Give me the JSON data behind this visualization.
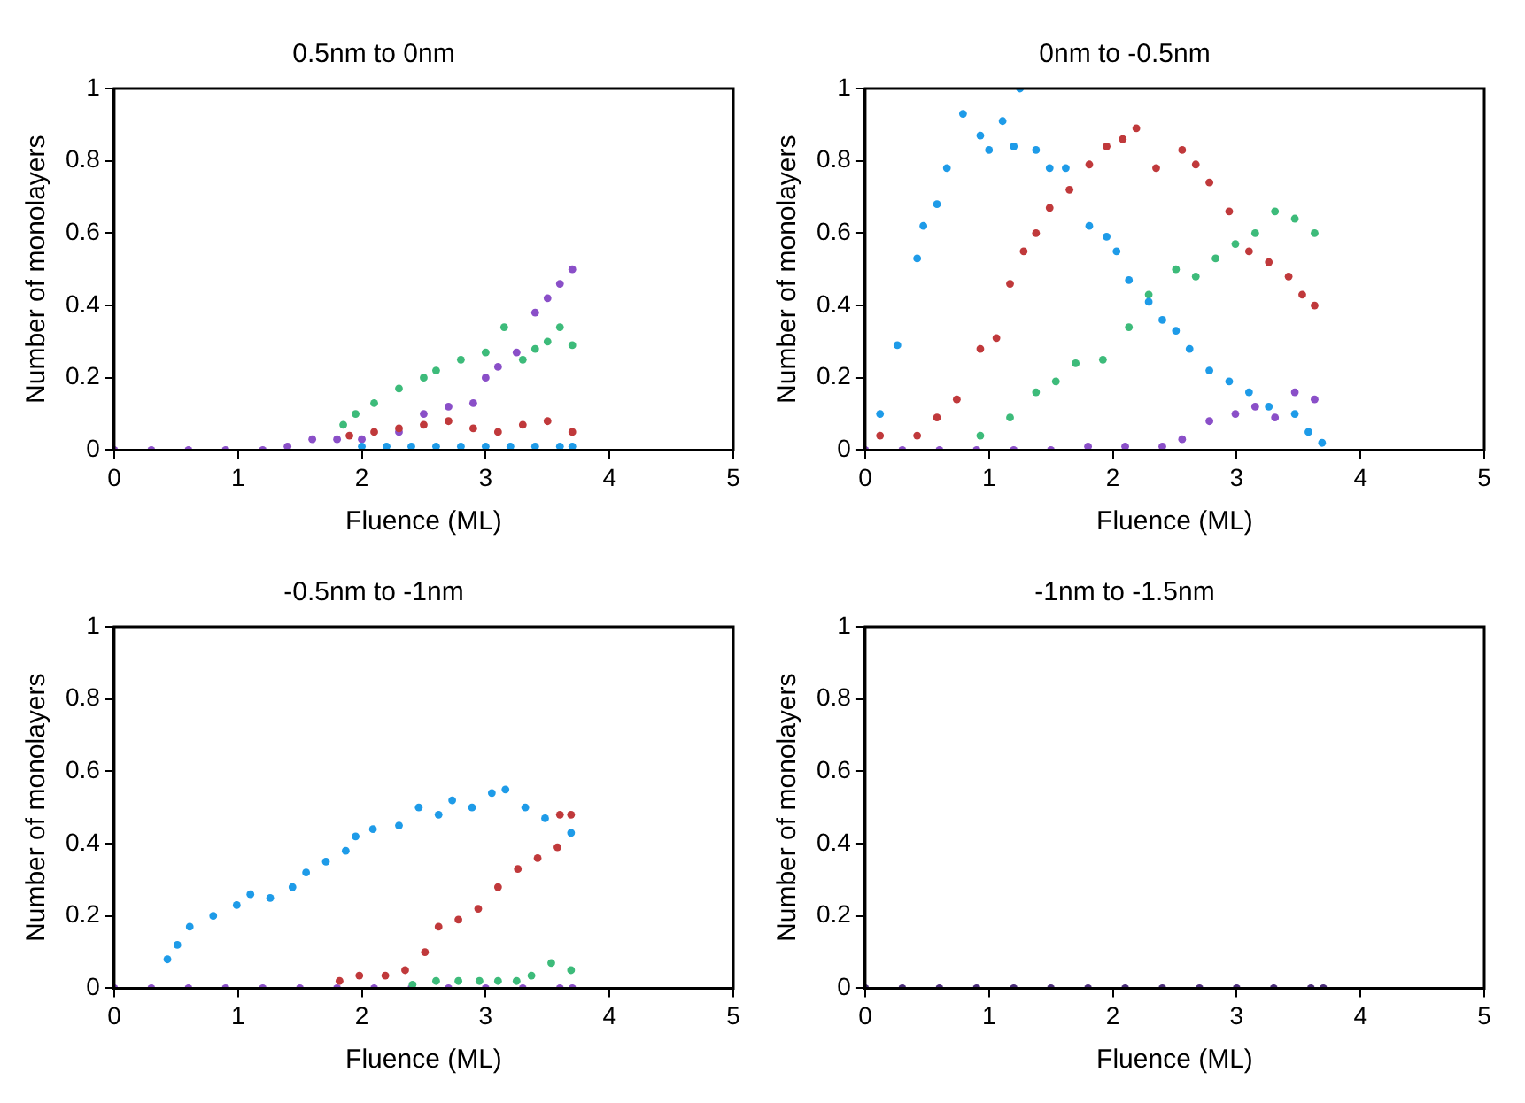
{
  "chart_data": [
    {
      "type": "scatter",
      "title": "0.5nm to 0nm",
      "xlabel": "Fluence (ML)",
      "ylabel": "Number of monolayers",
      "xlim": [
        0,
        5
      ],
      "ylim": [
        0,
        1
      ],
      "xticks": [
        0,
        1,
        2,
        3,
        4,
        5
      ],
      "yticks": [
        0,
        0.2,
        0.4,
        0.6,
        0.8,
        1
      ],
      "grid": false,
      "legend": false,
      "marker": "circle",
      "series": [
        {
          "color": "#1e9be8",
          "x": [
            2.0,
            2.2,
            2.4,
            2.6,
            2.8,
            3.0,
            3.2,
            3.4,
            3.6,
            3.7
          ],
          "values": [
            0.01,
            0.01,
            0.01,
            0.01,
            0.01,
            0.01,
            0.01,
            0.01,
            0.01,
            0.01
          ]
        },
        {
          "color": "#c0393b",
          "x": [
            1.9,
            2.1,
            2.3,
            2.5,
            2.7,
            2.9,
            3.1,
            3.3,
            3.5,
            3.7
          ],
          "values": [
            0.04,
            0.05,
            0.06,
            0.07,
            0.08,
            0.06,
            0.05,
            0.07,
            0.08,
            0.05
          ]
        },
        {
          "color": "#3dbb7a",
          "x": [
            1.85,
            1.95,
            2.1,
            2.3,
            2.5,
            2.6,
            2.8,
            3.0,
            3.15,
            3.3,
            3.4,
            3.5,
            3.6,
            3.7
          ],
          "values": [
            0.07,
            0.1,
            0.13,
            0.17,
            0.2,
            0.22,
            0.25,
            0.27,
            0.34,
            0.25,
            0.28,
            0.3,
            0.34,
            0.29
          ]
        },
        {
          "color": "#8a4fc8",
          "x": [
            0,
            0.3,
            0.6,
            0.9,
            1.2,
            1.4,
            1.6,
            1.8,
            2.0,
            2.3,
            2.5,
            2.7,
            2.9,
            3.0,
            3.1,
            3.25,
            3.4,
            3.5,
            3.6,
            3.7
          ],
          "values": [
            0,
            0,
            0,
            0,
            0,
            0.01,
            0.03,
            0.03,
            0.03,
            0.05,
            0.1,
            0.12,
            0.13,
            0.2,
            0.23,
            0.27,
            0.38,
            0.42,
            0.46,
            0.5
          ]
        }
      ]
    },
    {
      "type": "scatter",
      "title": "0nm to -0.5nm",
      "xlabel": "Fluence (ML)",
      "ylabel": "Number of monolayers",
      "xlim": [
        0,
        5
      ],
      "ylim": [
        0,
        1
      ],
      "xticks": [
        0,
        1,
        2,
        3,
        4,
        5
      ],
      "yticks": [
        0,
        0.2,
        0.4,
        0.6,
        0.8,
        1
      ],
      "grid": false,
      "legend": false,
      "marker": "circle",
      "series": [
        {
          "color": "#1e9be8",
          "x": [
            0.12,
            0.26,
            0.42,
            0.47,
            0.58,
            0.66,
            0.79,
            0.93,
            1.0,
            1.11,
            1.2,
            1.25,
            1.38,
            1.49,
            1.62,
            1.81,
            1.95,
            2.03,
            2.13,
            2.29,
            2.4,
            2.51,
            2.62,
            2.78,
            2.94,
            3.1,
            3.26,
            3.47,
            3.58,
            3.69
          ],
          "values": [
            0.1,
            0.29,
            0.53,
            0.62,
            0.68,
            0.78,
            0.93,
            0.87,
            0.83,
            0.91,
            0.84,
            1.0,
            0.83,
            0.78,
            0.78,
            0.62,
            0.59,
            0.55,
            0.47,
            0.41,
            0.36,
            0.33,
            0.28,
            0.22,
            0.19,
            0.16,
            0.12,
            0.1,
            0.05,
            0.02
          ]
        },
        {
          "color": "#c0393b",
          "x": [
            0.12,
            0.42,
            0.58,
            0.74,
            0.93,
            1.06,
            1.17,
            1.28,
            1.38,
            1.49,
            1.65,
            1.81,
            1.95,
            2.08,
            2.19,
            2.35,
            2.56,
            2.67,
            2.78,
            2.94,
            3.1,
            3.26,
            3.42,
            3.53,
            3.63
          ],
          "values": [
            0.04,
            0.04,
            0.09,
            0.14,
            0.28,
            0.31,
            0.46,
            0.55,
            0.6,
            0.67,
            0.72,
            0.79,
            0.84,
            0.86,
            0.89,
            0.78,
            0.83,
            0.79,
            0.74,
            0.66,
            0.55,
            0.52,
            0.48,
            0.43,
            0.4
          ]
        },
        {
          "color": "#3dbb7a",
          "x": [
            0.93,
            1.17,
            1.38,
            1.54,
            1.7,
            1.92,
            2.13,
            2.29,
            2.51,
            2.67,
            2.83,
            2.99,
            3.15,
            3.31,
            3.47,
            3.63
          ],
          "values": [
            0.04,
            0.09,
            0.16,
            0.19,
            0.24,
            0.25,
            0.34,
            0.43,
            0.5,
            0.48,
            0.53,
            0.57,
            0.6,
            0.66,
            0.64,
            0.6
          ]
        },
        {
          "color": "#8a4fc8",
          "x": [
            0,
            0.3,
            0.6,
            0.9,
            1.2,
            1.5,
            1.8,
            2.1,
            2.4,
            2.56,
            2.78,
            2.99,
            3.15,
            3.31,
            3.47,
            3.63
          ],
          "values": [
            0,
            0,
            0,
            0,
            0,
            0,
            0.01,
            0.01,
            0.01,
            0.03,
            0.08,
            0.1,
            0.12,
            0.09,
            0.16,
            0.14
          ]
        }
      ]
    },
    {
      "type": "scatter",
      "title": "-0.5nm to -1nm",
      "xlabel": "Fluence (ML)",
      "ylabel": "Number of monolayers",
      "xlim": [
        0,
        5
      ],
      "ylim": [
        0,
        1
      ],
      "xticks": [
        0,
        1,
        2,
        3,
        4,
        5
      ],
      "yticks": [
        0,
        0.2,
        0.4,
        0.6,
        0.8,
        1
      ],
      "grid": false,
      "legend": false,
      "marker": "circle",
      "series": [
        {
          "color": "#1e9be8",
          "x": [
            0.43,
            0.51,
            0.61,
            0.8,
            0.99,
            1.1,
            1.26,
            1.44,
            1.55,
            1.71,
            1.87,
            1.95,
            2.09,
            2.3,
            2.46,
            2.62,
            2.73,
            2.89,
            3.05,
            3.16,
            3.32,
            3.48,
            3.69
          ],
          "values": [
            0.08,
            0.12,
            0.17,
            0.2,
            0.23,
            0.26,
            0.25,
            0.28,
            0.32,
            0.35,
            0.38,
            0.42,
            0.44,
            0.45,
            0.5,
            0.48,
            0.52,
            0.5,
            0.54,
            0.55,
            0.5,
            0.47,
            0.43
          ]
        },
        {
          "color": "#c0393b",
          "x": [
            1.82,
            1.98,
            2.19,
            2.35,
            2.51,
            2.62,
            2.78,
            2.94,
            3.1,
            3.26,
            3.42,
            3.58,
            3.6,
            3.69
          ],
          "values": [
            0.02,
            0.035,
            0.035,
            0.05,
            0.1,
            0.17,
            0.19,
            0.22,
            0.28,
            0.33,
            0.36,
            0.39,
            0.48,
            0.48
          ]
        },
        {
          "color": "#3dbb7a",
          "x": [
            2.41,
            2.6,
            2.78,
            2.95,
            3.1,
            3.25,
            3.37,
            3.53,
            3.69
          ],
          "values": [
            0.01,
            0.02,
            0.02,
            0.02,
            0.02,
            0.02,
            0.035,
            0.07,
            0.05
          ]
        },
        {
          "color": "#8a4fc8",
          "x": [
            0,
            0.3,
            0.6,
            0.9,
            1.2,
            1.5,
            1.8,
            2.1,
            2.4,
            2.7,
            3.0,
            3.3,
            3.6,
            3.7
          ],
          "values": [
            0,
            0,
            0,
            0,
            0,
            0,
            0,
            0,
            0,
            0,
            0,
            0,
            0,
            0
          ]
        }
      ]
    },
    {
      "type": "scatter",
      "title": "-1nm to -1.5nm",
      "xlabel": "Fluence (ML)",
      "ylabel": "Number of monolayers",
      "xlim": [
        0,
        5
      ],
      "ylim": [
        0,
        1
      ],
      "xticks": [
        0,
        1,
        2,
        3,
        4,
        5
      ],
      "yticks": [
        0,
        0.2,
        0.4,
        0.6,
        0.8,
        1
      ],
      "grid": false,
      "legend": false,
      "marker": "circle",
      "series": [
        {
          "color": "#4a2c7a",
          "x": [
            0,
            0.3,
            0.6,
            0.9,
            1.2,
            1.5,
            1.8,
            2.1,
            2.4,
            2.7,
            3.0,
            3.3,
            3.6,
            3.7
          ],
          "values": [
            0,
            0,
            0,
            0,
            0,
            0,
            0,
            0,
            0,
            0,
            0,
            0,
            0,
            0
          ]
        }
      ]
    }
  ]
}
